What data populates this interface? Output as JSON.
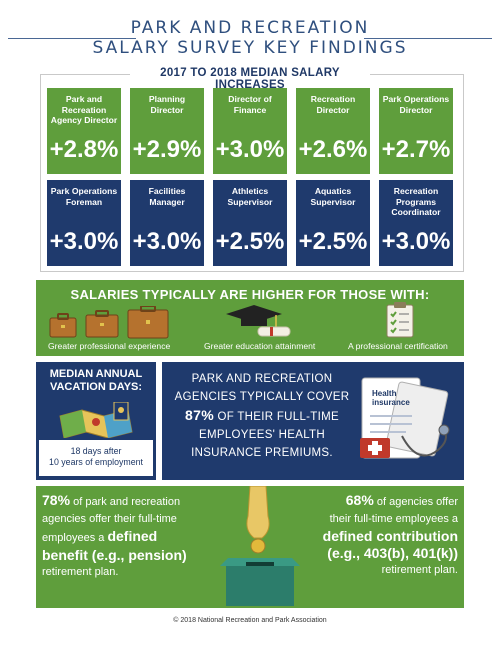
{
  "title": {
    "line1": "PARK AND RECREATION",
    "line2": "SALARY SURVEY KEY FINDINGS"
  },
  "salary": {
    "heading": "2017 TO 2018 MEDIAN SALARY INCREASES",
    "tiles": [
      {
        "label": "Park and Recreation Agency Director",
        "value": "+2.8%"
      },
      {
        "label": "Planning Director",
        "value": "+2.9%"
      },
      {
        "label": "Director of Finance",
        "value": "+3.0%"
      },
      {
        "label": "Recreation Director",
        "value": "+2.6%"
      },
      {
        "label": "Park Operations Director",
        "value": "+2.7%"
      },
      {
        "label": "Park Operations Foreman",
        "value": "+3.0%"
      },
      {
        "label": "Facilities Manager",
        "value": "+3.0%"
      },
      {
        "label": "Athletics Supervisor",
        "value": "+2.5%"
      },
      {
        "label": "Aquatics Supervisor",
        "value": "+2.5%"
      },
      {
        "label": "Recreation Programs Coordinator",
        "value": "+3.0%"
      }
    ],
    "colors": {
      "green": "#5f9e3c",
      "blue": "#1f3a6d"
    }
  },
  "higher": {
    "heading": "SALARIES TYPICALLY ARE HIGHER FOR THOSE WITH:",
    "items": [
      {
        "caption": "Greater professional experience",
        "icon": "briefcase-icon"
      },
      {
        "caption": "Greater education attainment",
        "icon": "graduation-cap-icon"
      },
      {
        "caption": "A professional certification",
        "icon": "clipboard-icon"
      }
    ]
  },
  "vacation": {
    "heading": "MEDIAN ANNUAL VACATION DAYS:",
    "note_line1": "18 days after",
    "note_line2": "10 years of employment",
    "icon": "map-icon"
  },
  "health": {
    "line1": "PARK AND RECREATION",
    "line2": "AGENCIES TYPICALLY COVER",
    "pct": "87%",
    "line3_rest": "OF THEIR FULL-TIME",
    "line4": "EMPLOYEES' HEALTH",
    "line5": "INSURANCE PREMIUMS.",
    "icon_title": "Health insurance"
  },
  "retirement": {
    "left": {
      "pct": "78%",
      "t1": "of park and recreation",
      "t2": "agencies offer their full-time",
      "t3": "employees a",
      "b1": "defined",
      "b2": "benefit (e.g., pension)",
      "t4": "retirement plan."
    },
    "right": {
      "pct": "68%",
      "t1": "of agencies  offer",
      "t2": "their full-time employees a",
      "b1": "defined contribution",
      "b2": "(e.g., 403(b), 401(k))",
      "t3": "retirement plan."
    }
  },
  "footer": "© 2018 National Recreation and Park Association"
}
